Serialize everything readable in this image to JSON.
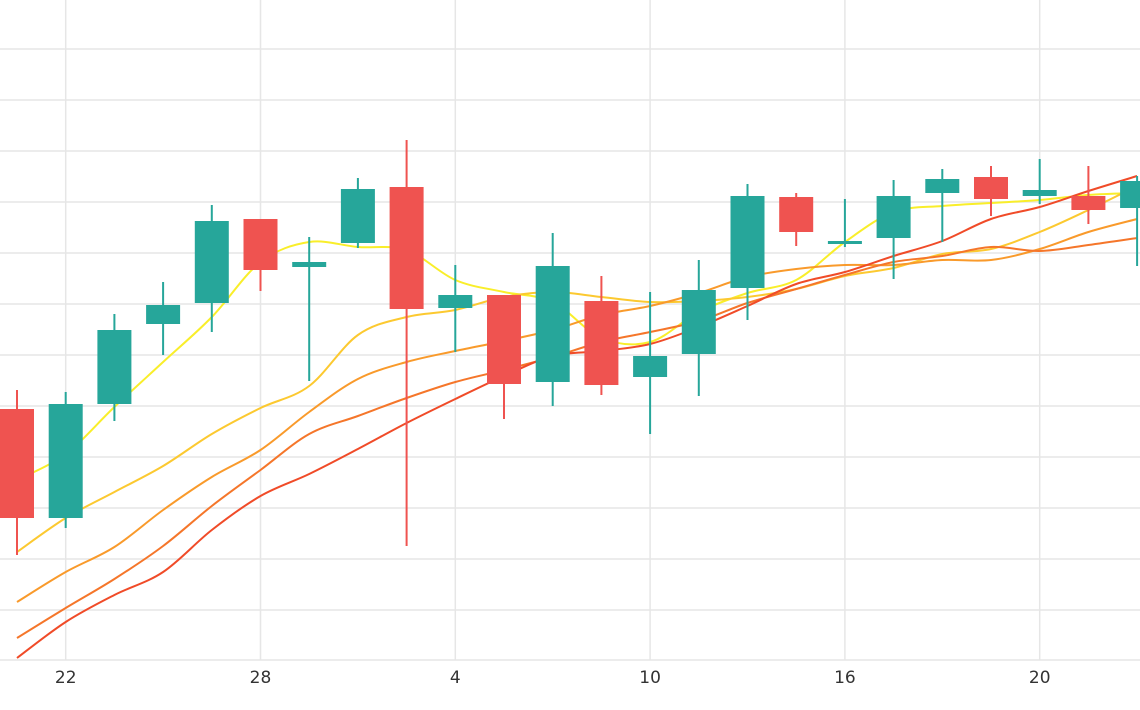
{
  "chart_data": {
    "type": "candlestick",
    "x_tick_labels": [
      {
        "label": "22",
        "index": 1
      },
      {
        "label": "28",
        "index": 5
      },
      {
        "label": "4",
        "index": 9
      },
      {
        "label": "10",
        "index": 13
      },
      {
        "label": "16",
        "index": 17
      },
      {
        "label": "20",
        "index": 21
      }
    ],
    "ylim": [
      0,
      660
    ],
    "grid": true,
    "colors": {
      "up": "#26a69a",
      "down": "#ef5350",
      "grid": "#e6e6e6"
    },
    "candles": [
      {
        "o": 251,
        "h": 270,
        "l": 105,
        "c": 142
      },
      {
        "o": 142,
        "h": 268,
        "l": 132,
        "c": 256
      },
      {
        "o": 256,
        "h": 346,
        "l": 239,
        "c": 330
      },
      {
        "o": 336,
        "h": 378,
        "l": 305,
        "c": 355
      },
      {
        "o": 357,
        "h": 455,
        "l": 328,
        "c": 439
      },
      {
        "o": 441,
        "h": 441,
        "l": 369,
        "c": 390
      },
      {
        "o": 393,
        "h": 423,
        "l": 279,
        "c": 398
      },
      {
        "o": 417,
        "h": 482,
        "l": 412,
        "c": 471
      },
      {
        "o": 473,
        "h": 520,
        "l": 114,
        "c": 351
      },
      {
        "o": 352,
        "h": 395,
        "l": 308,
        "c": 365
      },
      {
        "o": 365,
        "h": 365,
        "l": 241,
        "c": 276
      },
      {
        "o": 278,
        "h": 427,
        "l": 254,
        "c": 394
      },
      {
        "o": 359,
        "h": 384,
        "l": 265,
        "c": 275
      },
      {
        "o": 283,
        "h": 368,
        "l": 226,
        "c": 304
      },
      {
        "o": 306,
        "h": 400,
        "l": 264,
        "c": 370
      },
      {
        "o": 372,
        "h": 476,
        "l": 340,
        "c": 464
      },
      {
        "o": 463,
        "h": 467,
        "l": 414,
        "c": 428
      },
      {
        "o": 419,
        "h": 461,
        "l": 413,
        "c": 419
      },
      {
        "o": 422,
        "h": 480,
        "l": 381,
        "c": 464
      },
      {
        "o": 467,
        "h": 491,
        "l": 418,
        "c": 481
      },
      {
        "o": 483,
        "h": 494,
        "l": 444,
        "c": 461
      },
      {
        "o": 464,
        "h": 501,
        "l": 456,
        "c": 470
      },
      {
        "o": 464,
        "h": 494,
        "l": 436,
        "c": 450
      },
      {
        "o": 452,
        "h": 484,
        "l": 394,
        "c": 479
      }
    ],
    "series": [
      {
        "color": "#f9ee2a",
        "values": [
          180,
          206,
          253,
          298,
          343,
          398,
          418,
          413,
          410,
          380,
          368,
          358,
          322,
          318,
          348,
          367,
          380,
          418,
          448,
          454,
          457,
          460,
          465,
          467
        ]
      },
      {
        "color": "#fcc930",
        "values": [
          108,
          142,
          168,
          194,
          226,
          252,
          274,
          325,
          343,
          350,
          363,
          368,
          363,
          358,
          359,
          363,
          371,
          384,
          392,
          406,
          411,
          428,
          450,
          474
        ]
      },
      {
        "color": "#f99a2b",
        "values": [
          58,
          88,
          113,
          150,
          183,
          210,
          248,
          281,
          298,
          309,
          319,
          330,
          345,
          354,
          367,
          383,
          391,
          395,
          395,
          400,
          400,
          411,
          428,
          441
        ]
      },
      {
        "color": "#f5762a",
        "values": [
          22,
          52,
          81,
          114,
          154,
          190,
          226,
          244,
          262,
          278,
          290,
          303,
          318,
          328,
          339,
          357,
          371,
          385,
          398,
          404,
          413,
          409,
          415,
          422
        ]
      },
      {
        "color": "#f04b28",
        "values": [
          2,
          38,
          65,
          88,
          130,
          164,
          186,
          211,
          237,
          261,
          284,
          304,
          309,
          316,
          333,
          354,
          376,
          388,
          404,
          419,
          441,
          453,
          469,
          484
        ]
      }
    ]
  }
}
